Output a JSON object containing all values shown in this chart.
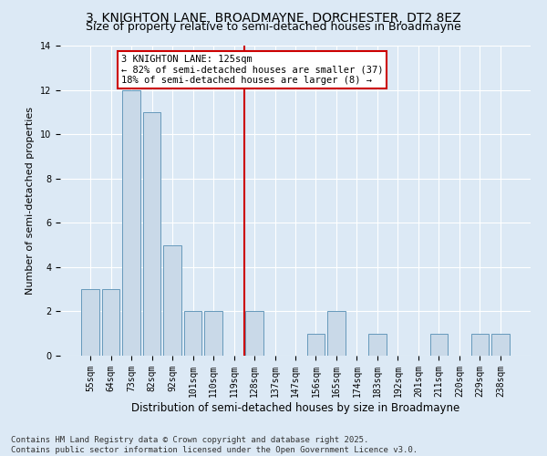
{
  "title": "3, KNIGHTON LANE, BROADMAYNE, DORCHESTER, DT2 8EZ",
  "subtitle": "Size of property relative to semi-detached houses in Broadmayne",
  "xlabel": "Distribution of semi-detached houses by size in Broadmayne",
  "ylabel": "Number of semi-detached properties",
  "categories": [
    "55sqm",
    "64sqm",
    "73sqm",
    "82sqm",
    "92sqm",
    "101sqm",
    "110sqm",
    "119sqm",
    "128sqm",
    "137sqm",
    "147sqm",
    "156sqm",
    "165sqm",
    "174sqm",
    "183sqm",
    "192sqm",
    "201sqm",
    "211sqm",
    "220sqm",
    "229sqm",
    "238sqm"
  ],
  "values": [
    3,
    3,
    12,
    11,
    5,
    2,
    2,
    0,
    2,
    0,
    0,
    1,
    2,
    0,
    1,
    0,
    0,
    1,
    0,
    1,
    1
  ],
  "bar_color": "#c9d9e8",
  "bar_edge_color": "#6699bb",
  "vline_x_index": 8,
  "vline_color": "#cc0000",
  "annotation_text": "3 KNIGHTON LANE: 125sqm\n← 82% of semi-detached houses are smaller (37)\n18% of semi-detached houses are larger (8) →",
  "annotation_box_color": "#cc0000",
  "ylim": [
    0,
    14
  ],
  "yticks": [
    0,
    2,
    4,
    6,
    8,
    10,
    12,
    14
  ],
  "background_color": "#dce9f5",
  "plot_background_color": "#dce9f5",
  "footer_text": "Contains HM Land Registry data © Crown copyright and database right 2025.\nContains public sector information licensed under the Open Government Licence v3.0.",
  "title_fontsize": 10,
  "subtitle_fontsize": 9,
  "xlabel_fontsize": 8.5,
  "ylabel_fontsize": 8,
  "tick_fontsize": 7,
  "annotation_fontsize": 7.5,
  "footer_fontsize": 6.5
}
